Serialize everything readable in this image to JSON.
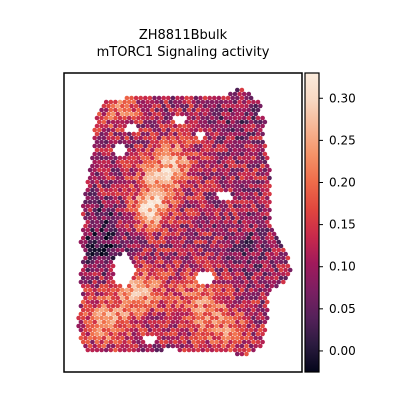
{
  "chart_data": {
    "type": "spatial-hexbin",
    "title": "ZH8811Bbulk",
    "subtitle": "mTORC1 Signaling activity",
    "colormap": "rocket",
    "colorbar": {
      "range": [
        -0.025,
        0.33
      ],
      "ticks": [
        0.0,
        0.05,
        0.1,
        0.15,
        0.2,
        0.25,
        0.3
      ],
      "tick_labels": [
        "0.00",
        "0.05",
        "0.10",
        "0.15",
        "0.20",
        "0.25",
        "0.30"
      ]
    },
    "axes_visible": false,
    "colors": {
      "rocket": [
        "#03051a",
        "#2b1b3f",
        "#55215a",
        "#7c1f62",
        "#a11a5b",
        "#c92a4b",
        "#e1473e",
        "#ef6c4a",
        "#f49368",
        "#f6b695",
        "#f7d8c2",
        "#faebdd"
      ]
    }
  }
}
